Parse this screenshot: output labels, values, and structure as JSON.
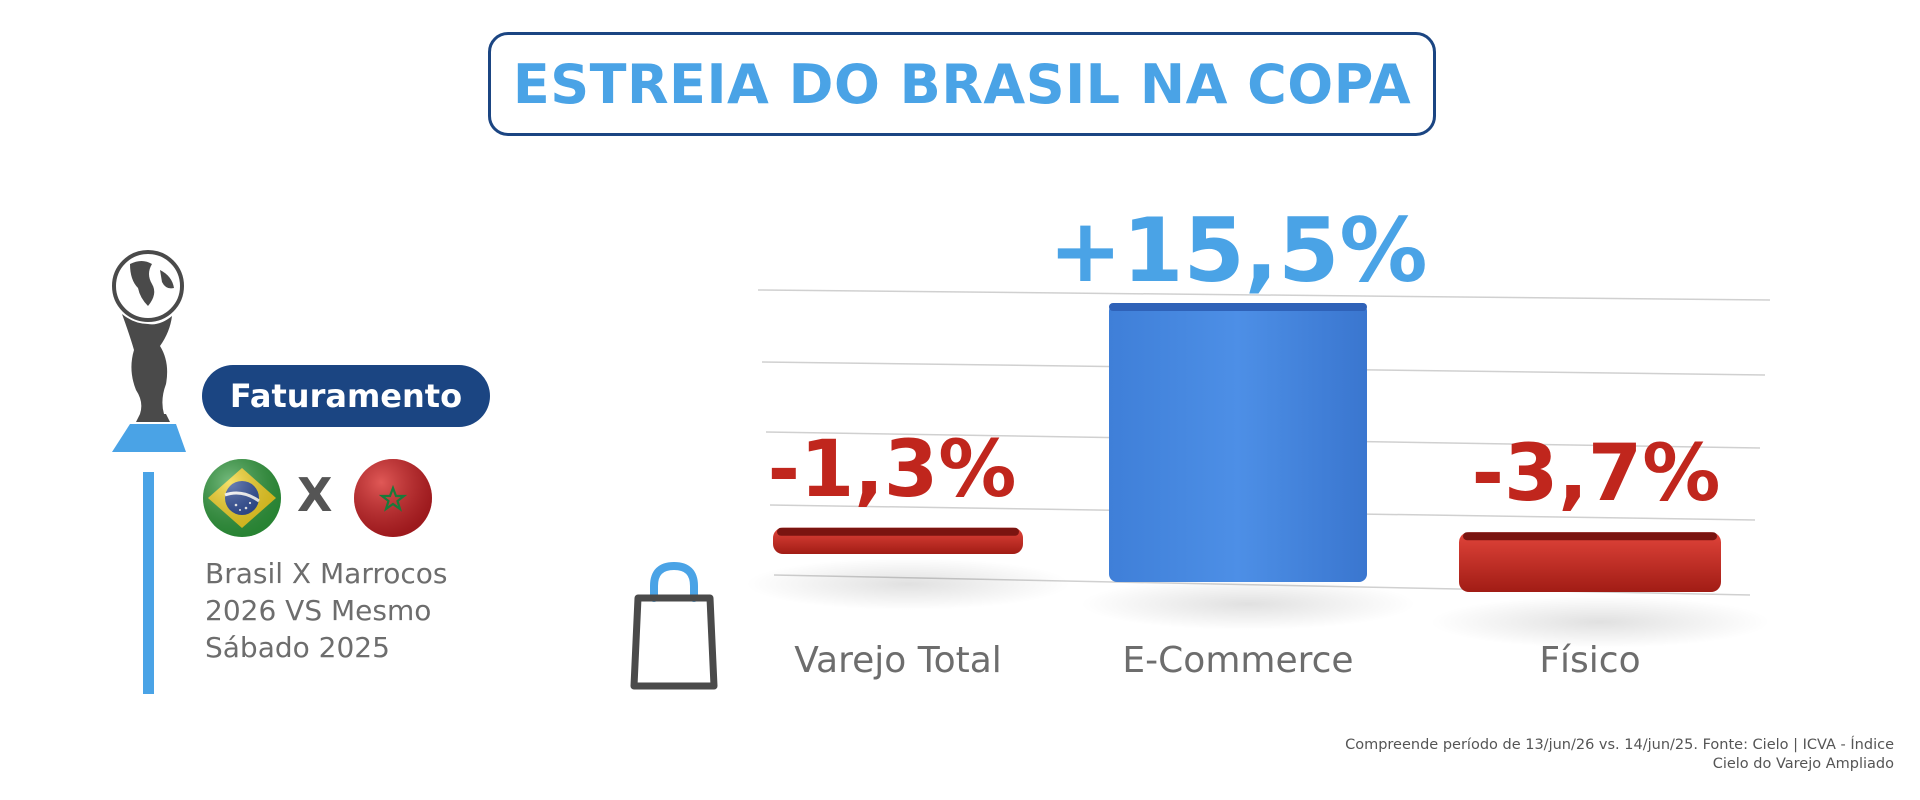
{
  "title": "ESTREIA DO BRASIL NA COPA",
  "panel": {
    "badge": "Faturamento",
    "match_x": "X",
    "description_lines": [
      "Brasil X Marrocos",
      "2026 VS Mesmo",
      "Sábado 2025"
    ],
    "icons": [
      "trophy-icon",
      "brazil-flag-icon",
      "morocco-flag-icon",
      "shopping-bag-icon"
    ]
  },
  "colors": {
    "title": "#4aa3e6",
    "navy": "#1b4582",
    "positive": "#4a8ce3",
    "negative": "#c0261d"
  },
  "chart_data": {
    "type": "bar",
    "categories": [
      "Varejo Total",
      "E-Commerce",
      "Físico"
    ],
    "values": [
      -1.3,
      15.5,
      -3.7
    ],
    "labels": [
      "-1,3%",
      "+15,5%",
      "-3,7%"
    ],
    "unit": "%",
    "grid": true,
    "legend": "none"
  },
  "footnote": {
    "line1": "Compreende período de 13/jun/26 vs. 14/jun/25. Fonte: Cielo | ICVA - Índice",
    "line2": "Cielo do Varejo Ampliado"
  }
}
